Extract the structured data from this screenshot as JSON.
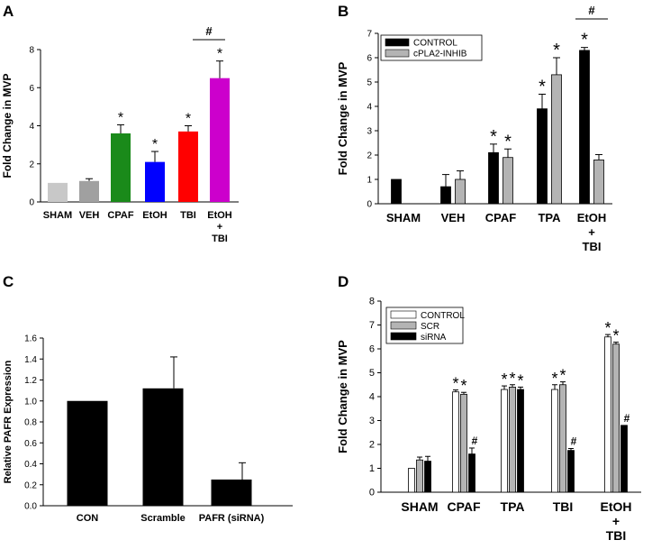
{
  "chart_data": [
    {
      "panel": "A",
      "type": "bar",
      "ylabel": "Fold Change in MVP",
      "ylim": [
        0,
        8
      ],
      "yticks": [
        0,
        2,
        4,
        6,
        8
      ],
      "categories": [
        [
          "SHAM"
        ],
        [
          "VEH"
        ],
        [
          "CPAF"
        ],
        [
          "EtOH"
        ],
        [
          "TBI"
        ],
        [
          "EtOH",
          "+",
          "TBI"
        ]
      ],
      "values": [
        1.0,
        1.1,
        3.6,
        2.1,
        3.7,
        6.5
      ],
      "errors": [
        0,
        0.12,
        0.45,
        0.55,
        0.3,
        0.9
      ],
      "colors": [
        "#c8c8c8",
        "#a0a0a0",
        "#1a8a1a",
        "#0000ff",
        "#ff0000",
        "#cc00cc"
      ],
      "stars": [
        "",
        "",
        "*",
        "*",
        "*",
        "*"
      ],
      "bracket": {
        "label": "#",
        "from": 4,
        "to": 5
      }
    },
    {
      "panel": "B",
      "type": "bar",
      "ylabel": "Fold Change in MVP",
      "ylim": [
        0,
        7
      ],
      "yticks": [
        0,
        1,
        2,
        3,
        4,
        5,
        6,
        7
      ],
      "categories": [
        [
          "SHAM"
        ],
        [
          "VEH"
        ],
        [
          "CPAF"
        ],
        [
          "TPA"
        ],
        [
          "EtOH",
          "+",
          "TBI"
        ]
      ],
      "series": [
        {
          "name": "CONTROL",
          "color": "#000000",
          "values": [
            1.0,
            0.7,
            2.1,
            3.9,
            6.3
          ],
          "errors": [
            0,
            0.5,
            0.35,
            0.6,
            0.12
          ],
          "stars": [
            "",
            "",
            "*",
            "*",
            "*"
          ]
        },
        {
          "name": "cPLA2-INHIB",
          "color": "#b4b4b4",
          "values": [
            null,
            1.0,
            1.9,
            5.3,
            1.8
          ],
          "errors": [
            0,
            0.35,
            0.35,
            0.7,
            0.22
          ],
          "stars": [
            "",
            "",
            "*",
            "*",
            ""
          ]
        }
      ],
      "bracket": {
        "label": "#",
        "category": 4
      },
      "legend": "top-left"
    },
    {
      "panel": "C",
      "type": "bar",
      "ylabel": "Relative PAFR Expression",
      "ylim": [
        0,
        1.6
      ],
      "yticks": [
        "0.0",
        "0.2",
        "0.4",
        "0.6",
        "0.8",
        "1.0",
        "1.2",
        "1.4",
        "1.6"
      ],
      "categories": [
        [
          "CON"
        ],
        [
          "Scramble"
        ],
        [
          "PAFR (siRNA)"
        ]
      ],
      "values": [
        1.0,
        1.12,
        0.25
      ],
      "errors": [
        0,
        0.3,
        0.16
      ],
      "colors": [
        "#000000",
        "#000000",
        "#000000"
      ]
    },
    {
      "panel": "D",
      "type": "bar",
      "ylabel": "Fold Change in MVP",
      "ylim": [
        0,
        8
      ],
      "yticks": [
        0,
        1,
        2,
        3,
        4,
        5,
        6,
        7,
        8
      ],
      "categories": [
        [
          "SHAM"
        ],
        [
          "CPAF"
        ],
        [
          "TPA"
        ],
        [
          "TBI"
        ],
        [
          "EtOH",
          "+",
          "TBI"
        ]
      ],
      "series": [
        {
          "name": "CONTROL",
          "color": "#ffffff",
          "values": [
            1.0,
            4.2,
            4.3,
            4.3,
            6.5
          ],
          "errors": [
            0,
            0.08,
            0.15,
            0.2,
            0.1
          ],
          "stars": [
            "",
            "*",
            "*",
            "*",
            "*"
          ]
        },
        {
          "name": "SCR",
          "color": "#b4b4b4",
          "values": [
            1.35,
            4.1,
            4.4,
            4.5,
            6.2
          ],
          "errors": [
            0.12,
            0.08,
            0.1,
            0.12,
            0.08
          ],
          "stars": [
            "",
            "*",
            "*",
            "*",
            "*"
          ]
        },
        {
          "name": "siRNA",
          "color": "#000000",
          "values": [
            1.3,
            1.6,
            4.3,
            1.75,
            2.8
          ],
          "errors": [
            0.2,
            0.25,
            0.1,
            0.08,
            0
          ],
          "stars": [
            "",
            "#",
            "*",
            "#",
            "#"
          ]
        }
      ],
      "legend": "top-left"
    }
  ]
}
